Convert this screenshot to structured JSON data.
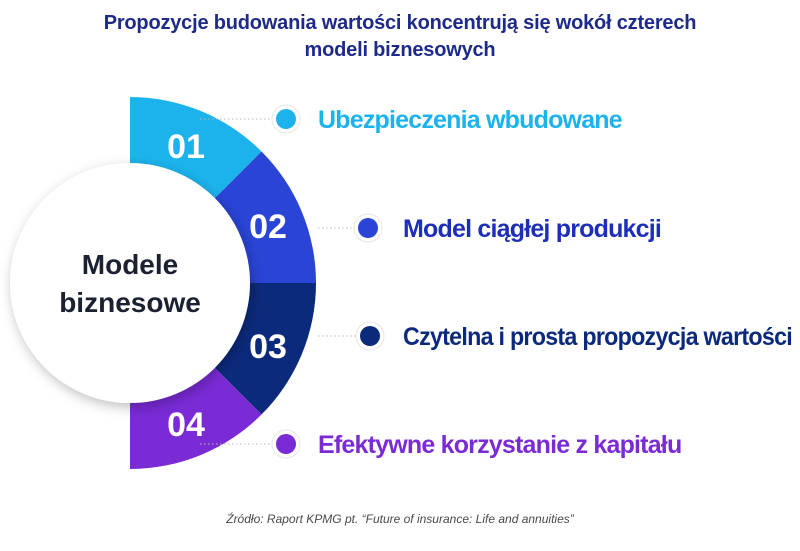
{
  "title": {
    "line1": "Propozycje budowania wartości koncentrują się wokół czterech",
    "line2": "modeli biznesowych"
  },
  "center": {
    "line1": "Modele",
    "line2": "biznesowe"
  },
  "segments": [
    {
      "number": "01",
      "label": "Ubezpieczenia wbudowane",
      "color": "#1cb3ec",
      "label_color": "#1cb3ec",
      "dot_icon": "light-blue-dot-icon"
    },
    {
      "number": "02",
      "label": "Model ciągłej produkcji",
      "color": "#2a44d6",
      "label_color": "#1d2fb8",
      "dot_icon": "blue-dot-icon"
    },
    {
      "number": "03",
      "label": "Czytelna i prosta propozycja wartości",
      "color": "#0c2a7c",
      "label_color": "#0c2a7c",
      "dot_icon": "navy-dot-icon"
    },
    {
      "number": "04",
      "label": "Efektywne korzystanie z kapitału",
      "color": "#7a2bd6",
      "label_color": "#7a2bd6",
      "dot_icon": "purple-dot-icon"
    }
  ],
  "source": "Źródło: Raport KPMG pt. “Future of insurance: Life and annuities”"
}
